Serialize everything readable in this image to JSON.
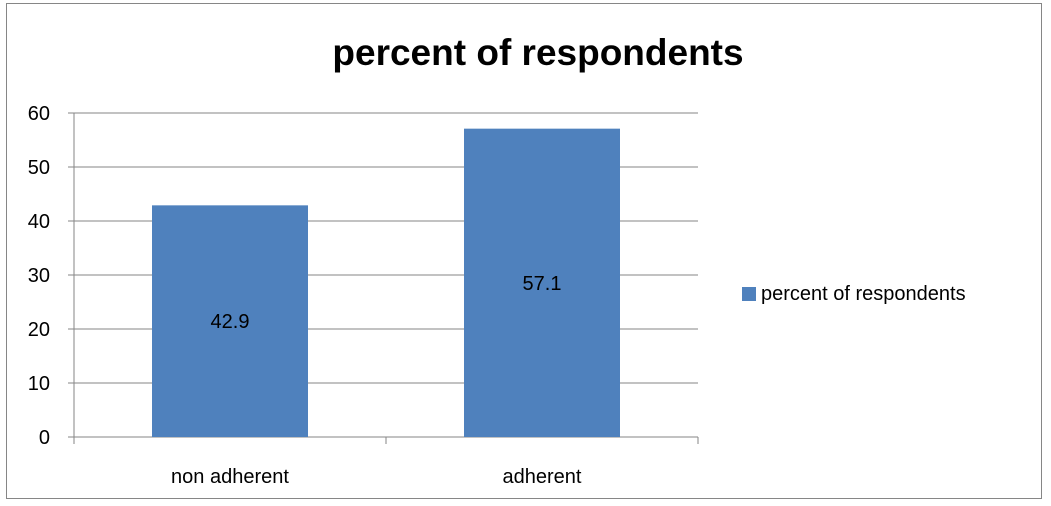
{
  "chart_data": {
    "type": "bar",
    "title": "percent of respondents",
    "xlabel": "",
    "ylabel": "",
    "categories": [
      "non adherent",
      "adherent"
    ],
    "series": [
      {
        "name": "percent of respondents",
        "values": [
          42.9,
          57.1
        ],
        "color": "#4F81BD",
        "data_labels": [
          "42.9",
          "57.1"
        ]
      }
    ],
    "ylim": [
      0,
      60
    ],
    "yticks": [
      0,
      10,
      20,
      30,
      40,
      50,
      60
    ],
    "grid": true,
    "legend_position": "right"
  },
  "colors": {
    "bar": "#4F81BD",
    "grid": "#868686",
    "text": "#000000"
  }
}
